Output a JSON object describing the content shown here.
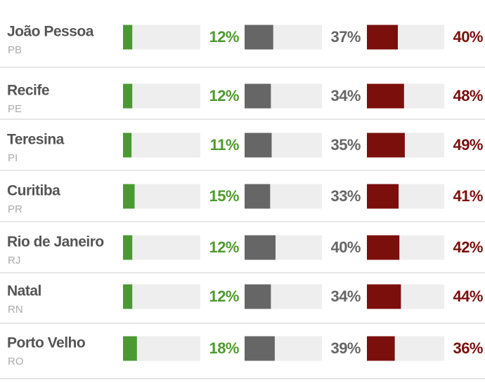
{
  "chart_data": {
    "type": "bar",
    "categories": [
      "João Pessoa",
      "Recife",
      "Teresina",
      "Curitiba",
      "Rio de Janeiro",
      "Natal",
      "Porto Velho"
    ],
    "states": [
      "PB",
      "PE",
      "PI",
      "PR",
      "RJ",
      "RN",
      "RO"
    ],
    "xlim": [
      0,
      100
    ],
    "track_color": "#eeeeee",
    "series": [
      {
        "color": "#4a9a32",
        "label_color": "#4e9a2f",
        "values": [
          12,
          12,
          11,
          15,
          12,
          12,
          18
        ],
        "value_labels": [
          "12%",
          "12%",
          "11%",
          "15%",
          "12%",
          "12%",
          "18%"
        ]
      },
      {
        "color": "#666666",
        "label_color": "#666666",
        "values": [
          37,
          34,
          35,
          33,
          40,
          34,
          39
        ],
        "value_labels": [
          "37%",
          "34%",
          "35%",
          "33%",
          "40%",
          "34%",
          "39%"
        ]
      },
      {
        "color": "#7b0f0c",
        "label_color": "#7a0f0b",
        "values": [
          40,
          48,
          49,
          41,
          42,
          44,
          36
        ],
        "value_labels": [
          "40%",
          "48%",
          "49%",
          "41%",
          "42%",
          "44%",
          "36%"
        ]
      }
    ]
  }
}
